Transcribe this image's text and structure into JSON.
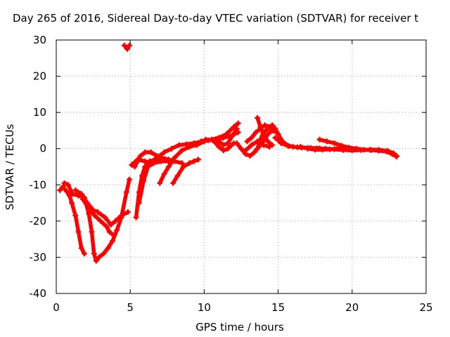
{
  "chart_data": {
    "type": "line",
    "title": "Day 265 of 2016, Sidereal Day-to-day VTEC variation (SDTVAR) for receiver t",
    "xlabel": "GPS time / hours",
    "ylabel": "SDTVAR / TECUs",
    "xlim": [
      0,
      25
    ],
    "ylim": [
      -40,
      30
    ],
    "xticks": [
      0,
      5,
      10,
      15,
      20,
      25
    ],
    "yticks": [
      -40,
      -30,
      -20,
      -10,
      0,
      10,
      20,
      30
    ],
    "grid": true,
    "legend": "none",
    "color": "#ff0000",
    "series": [
      {
        "points": [
          [
            0.25,
            -11.5
          ],
          [
            0.45,
            -10.5
          ],
          [
            0.7,
            -11.8
          ],
          [
            0.9,
            -13
          ],
          [
            1.05,
            -15
          ],
          [
            1.3,
            -18.5
          ],
          [
            1.5,
            -23
          ],
          [
            1.7,
            -27.5
          ],
          [
            1.9,
            -29
          ]
        ]
      },
      {
        "points": [
          [
            0.55,
            -9.5
          ],
          [
            0.8,
            -10
          ],
          [
            1.1,
            -12.5
          ],
          [
            1.5,
            -13
          ],
          [
            1.9,
            -13.5
          ],
          [
            2.2,
            -18
          ],
          [
            2.4,
            -23
          ],
          [
            2.55,
            -29
          ],
          [
            2.7,
            -31
          ],
          [
            2.9,
            -30
          ],
          [
            3.2,
            -29
          ],
          [
            3.5,
            -27.5
          ],
          [
            3.8,
            -25.5
          ],
          [
            4.1,
            -22.5
          ],
          [
            4.4,
            -19
          ],
          [
            4.75,
            -12
          ],
          [
            4.95,
            -8.5
          ]
        ]
      },
      {
        "points": [
          [
            1.3,
            -11.5
          ],
          [
            1.7,
            -12.5
          ],
          [
            2.1,
            -15
          ],
          [
            2.5,
            -17
          ],
          [
            2.8,
            -17.5
          ],
          [
            3.3,
            -19
          ],
          [
            3.7,
            -21
          ],
          [
            4.0,
            -20
          ],
          [
            4.4,
            -18.5
          ],
          [
            4.85,
            -17.5
          ]
        ]
      },
      {
        "points": [
          [
            1.8,
            -14
          ],
          [
            2.2,
            -16.5
          ],
          [
            2.6,
            -18.5
          ],
          [
            3.0,
            -20
          ],
          [
            3.4,
            -21.5
          ],
          [
            3.6,
            -23
          ],
          [
            3.9,
            -24
          ]
        ]
      },
      {
        "points": [
          [
            4.6,
            28.5
          ],
          [
            4.8,
            27.5
          ],
          [
            4.95,
            28.5
          ]
        ]
      },
      {
        "points": [
          [
            5.4,
            -19
          ],
          [
            5.6,
            -12
          ],
          [
            5.8,
            -7.5
          ],
          [
            6.0,
            -5
          ],
          [
            6.3,
            -3.5
          ],
          [
            6.7,
            -3
          ],
          [
            7.1,
            -2.5
          ],
          [
            7.6,
            -3
          ],
          [
            8.0,
            -3.5
          ],
          [
            8.5,
            -4
          ]
        ]
      },
      {
        "points": [
          [
            5.6,
            -15
          ],
          [
            5.9,
            -9
          ],
          [
            6.2,
            -5
          ],
          [
            6.6,
            -4
          ],
          [
            7.1,
            -3.5
          ],
          [
            7.6,
            -3.5
          ]
        ]
      },
      {
        "points": [
          [
            5.3,
            -5
          ],
          [
            5.5,
            -3.5
          ],
          [
            5.7,
            -2
          ],
          [
            6.0,
            -1
          ],
          [
            6.4,
            -1
          ],
          [
            6.8,
            -2
          ]
        ]
      },
      {
        "points": [
          [
            5.1,
            -4.5
          ],
          [
            5.5,
            -3
          ],
          [
            6.0,
            -3.5
          ],
          [
            6.5,
            -4
          ]
        ]
      },
      {
        "points": [
          [
            6.3,
            -4
          ],
          [
            6.8,
            -2.5
          ],
          [
            7.3,
            -1
          ],
          [
            7.8,
            0
          ],
          [
            8.3,
            1
          ],
          [
            8.8,
            1.2
          ],
          [
            9.3,
            1.5
          ],
          [
            9.8,
            2
          ],
          [
            10.3,
            2.3
          ],
          [
            10.8,
            2.6
          ],
          [
            11.3,
            3
          ],
          [
            11.8,
            3.5
          ],
          [
            12.3,
            4.5
          ]
        ]
      },
      {
        "points": [
          [
            7.0,
            -9.5
          ],
          [
            7.3,
            -7
          ],
          [
            7.6,
            -5
          ],
          [
            8.0,
            -2.5
          ],
          [
            8.5,
            -0.5
          ],
          [
            9.0,
            0.5
          ],
          [
            9.5,
            1
          ],
          [
            10.0,
            2
          ],
          [
            10.5,
            2.5
          ],
          [
            11.0,
            3
          ],
          [
            11.5,
            4
          ],
          [
            12.0,
            6
          ],
          [
            12.3,
            7
          ]
        ]
      },
      {
        "points": [
          [
            7.9,
            -9.5
          ],
          [
            8.2,
            -7.5
          ],
          [
            8.6,
            -5
          ],
          [
            9.0,
            -4
          ],
          [
            9.3,
            -3.5
          ],
          [
            9.6,
            -3
          ]
        ]
      },
      {
        "points": [
          [
            9.6,
            1.5
          ],
          [
            10.1,
            2.5
          ],
          [
            10.6,
            2.3
          ],
          [
            11.0,
            0.5
          ],
          [
            11.3,
            -0.5
          ],
          [
            11.6,
            0
          ],
          [
            12.0,
            1.5
          ]
        ]
      },
      {
        "points": [
          [
            11.0,
            2
          ],
          [
            11.3,
            1
          ],
          [
            11.6,
            1.5
          ],
          [
            11.9,
            3.5
          ],
          [
            12.2,
            5.5
          ]
        ]
      },
      {
        "points": [
          [
            12.2,
            1.5
          ],
          [
            12.5,
            0
          ],
          [
            12.8,
            -1.5
          ],
          [
            13.1,
            -2
          ],
          [
            13.4,
            -1
          ],
          [
            13.7,
            0.5
          ],
          [
            14.0,
            2
          ],
          [
            14.3,
            4
          ],
          [
            14.6,
            5
          ],
          [
            14.9,
            4.5
          ],
          [
            15.3,
            2
          ],
          [
            15.6,
            1
          ],
          [
            16.0,
            0.5
          ],
          [
            16.6,
            0.3
          ],
          [
            17.2,
            0.2
          ],
          [
            17.8,
            0.1
          ]
        ]
      },
      {
        "points": [
          [
            12.9,
            2
          ],
          [
            13.2,
            3
          ],
          [
            13.5,
            4.5
          ],
          [
            13.8,
            5.5
          ],
          [
            14.1,
            6.5
          ],
          [
            14.4,
            6
          ],
          [
            14.7,
            5
          ]
        ]
      },
      {
        "points": [
          [
            13.6,
            0
          ],
          [
            13.8,
            2.5
          ],
          [
            14.0,
            4.5
          ],
          [
            14.3,
            5.5
          ],
          [
            14.6,
            6.5
          ],
          [
            14.8,
            5.5
          ],
          [
            15.0,
            4
          ]
        ]
      },
      {
        "points": [
          [
            13.6,
            8.5
          ],
          [
            13.8,
            6
          ],
          [
            14.0,
            4
          ],
          [
            14.3,
            2
          ],
          [
            14.6,
            1
          ]
        ]
      },
      {
        "points": [
          [
            12.8,
            -0.5
          ],
          [
            13.2,
            1
          ],
          [
            13.6,
            2
          ],
          [
            14.0,
            1
          ],
          [
            14.4,
            0.5
          ]
        ]
      },
      {
        "points": [
          [
            14.8,
            3
          ],
          [
            15.2,
            1.5
          ],
          [
            15.7,
            0.7
          ],
          [
            16.3,
            0.4
          ],
          [
            17.0,
            0.2
          ],
          [
            17.6,
            0.1
          ],
          [
            18.2,
            0
          ],
          [
            18.8,
            -0.2
          ],
          [
            19.4,
            -0.4
          ],
          [
            20.0,
            -0.5
          ],
          [
            20.6,
            -0.4
          ],
          [
            21.2,
            -0.3
          ],
          [
            21.8,
            -0.3
          ],
          [
            22.4,
            -0.6
          ],
          [
            22.8,
            -1.3
          ],
          [
            23.0,
            -2
          ]
        ]
      },
      {
        "points": [
          [
            17.8,
            2.5
          ],
          [
            18.3,
            2
          ],
          [
            18.8,
            1.5
          ],
          [
            19.3,
            0.8
          ],
          [
            19.8,
            0.3
          ],
          [
            20.3,
            0
          ],
          [
            20.8,
            -0.3
          ],
          [
            21.3,
            -0.4
          ],
          [
            21.8,
            -0.6
          ],
          [
            22.3,
            -0.8
          ],
          [
            22.7,
            -1.5
          ],
          [
            23.0,
            -2.2
          ]
        ]
      },
      {
        "points": [
          [
            16.5,
            0.5
          ],
          [
            17.0,
            0
          ],
          [
            17.5,
            -0.3
          ],
          [
            18.0,
            -0.3
          ],
          [
            18.5,
            -0.2
          ],
          [
            19.0,
            0
          ],
          [
            19.5,
            0
          ],
          [
            20.0,
            -0.2
          ]
        ]
      }
    ]
  }
}
